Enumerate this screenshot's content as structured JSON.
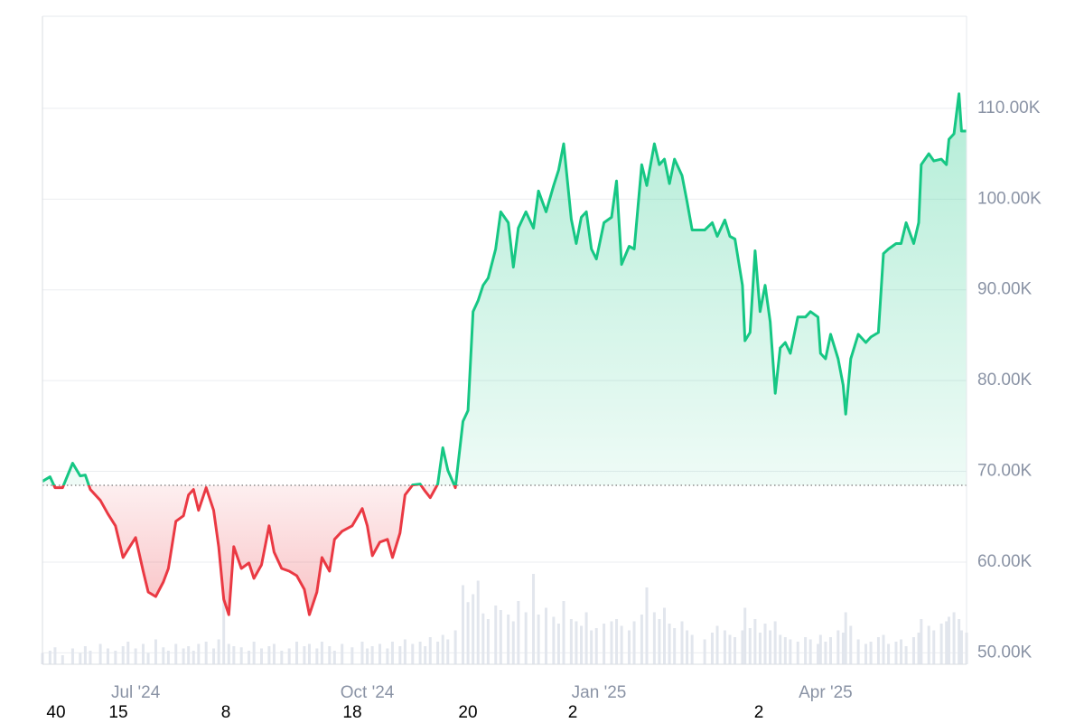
{
  "chart_data": {
    "type": "line",
    "x": [
      0,
      3,
      5,
      8,
      12,
      15,
      17,
      19,
      23,
      26,
      29,
      32,
      34,
      37,
      40,
      42,
      45,
      48,
      50,
      53,
      56,
      58,
      60,
      62,
      65,
      68,
      70,
      72,
      74,
      76,
      79,
      82,
      84,
      87,
      90,
      92,
      95,
      98,
      101,
      104,
      106,
      109,
      111,
      114,
      116,
      119,
      123,
      127,
      129,
      131,
      134,
      137,
      139,
      142,
      144,
      147,
      150,
      152,
      154,
      157,
      159,
      161,
      164,
      167,
      169,
      171,
      173,
      175,
      177,
      180,
      182,
      185,
      187,
      189,
      192,
      195,
      197,
      200,
      203,
      205,
      207,
      210,
      212,
      214,
      216,
      218,
      220,
      223,
      226,
      228,
      230,
      233,
      235,
      238,
      240,
      243,
      245,
      247,
      249,
      251,
      254,
      256,
      258,
      263,
      266,
      268,
      271,
      273,
      275,
      278,
      279,
      281,
      283,
      285,
      287,
      289,
      291,
      293,
      295,
      297,
      300,
      303,
      305,
      308,
      309,
      311,
      313,
      316,
      318,
      319,
      321,
      324,
      327,
      329,
      332,
      334,
      336,
      339,
      341,
      343,
      346,
      348,
      349,
      352,
      354,
      357,
      359,
      360,
      362,
      364,
      365,
      367
    ],
    "values": [
      68900,
      69400,
      68200,
      68200,
      70900,
      69500,
      69600,
      68000,
      66800,
      65300,
      64000,
      60500,
      61400,
      62700,
      59000,
      56700,
      56200,
      57800,
      59300,
      64500,
      65100,
      67400,
      68000,
      65700,
      68200,
      65700,
      61700,
      55900,
      54200,
      61700,
      59300,
      59900,
      58200,
      59700,
      64000,
      61100,
      59300,
      59000,
      58500,
      57000,
      54200,
      56700,
      60500,
      59000,
      62500,
      63400,
      64000,
      65900,
      64000,
      60700,
      62200,
      62500,
      60500,
      63200,
      67400,
      68500,
      68600,
      67800,
      67100,
      68600,
      72600,
      70100,
      68200,
      75500,
      76700,
      87600,
      88800,
      90500,
      91300,
      94500,
      98600,
      97400,
      92500,
      96800,
      98600,
      96800,
      100900,
      98600,
      101500,
      103200,
      106100,
      97800,
      95100,
      98000,
      98600,
      94500,
      93400,
      97400,
      98000,
      102000,
      92800,
      94800,
      94500,
      103800,
      101500,
      106100,
      103800,
      104400,
      101700,
      104400,
      102600,
      99700,
      96600,
      96600,
      97400,
      95900,
      97700,
      95900,
      95600,
      90500,
      84400,
      85300,
      94300,
      87600,
      90500,
      86500,
      78600,
      83600,
      84200,
      83000,
      87000,
      87000,
      87600,
      87000,
      83000,
      82400,
      85100,
      82400,
      79500,
      76300,
      82400,
      85100,
      84200,
      84800,
      85300,
      94000,
      94500,
      95100,
      95100,
      97400,
      95100,
      97400,
      103800,
      105000,
      104200,
      104400,
      103800,
      106600,
      107200,
      111600,
      107500,
      107500
    ],
    "volume": [
      10,
      12,
      15,
      8,
      14,
      10,
      16,
      12,
      18,
      14,
      12,
      16,
      20,
      14,
      18,
      10,
      22,
      15,
      12,
      18,
      14,
      16,
      12,
      18,
      20,
      14,
      22,
      60,
      18,
      16,
      15,
      12,
      20,
      14,
      16,
      18,
      12,
      14,
      20,
      16,
      18,
      14,
      20,
      16,
      12,
      18,
      15,
      20,
      14,
      16,
      18,
      14,
      20,
      16,
      22,
      18,
      20,
      16,
      24,
      20,
      26,
      22,
      30,
      70,
      55,
      62,
      74,
      45,
      40,
      52,
      48,
      44,
      38,
      56,
      46,
      80,
      44,
      50,
      42,
      36,
      56,
      40,
      38,
      34,
      46,
      30,
      32,
      36,
      38,
      40,
      34,
      30,
      38,
      44,
      68,
      46,
      40,
      50,
      36,
      32,
      38,
      30,
      26,
      22,
      28,
      34,
      30,
      26,
      24,
      30,
      50,
      32,
      40,
      28,
      36,
      30,
      38,
      26,
      24,
      22,
      20,
      24,
      22,
      18,
      26,
      20,
      24,
      30,
      28,
      46,
      34,
      22,
      18,
      20,
      24,
      26,
      18,
      20,
      22,
      16,
      24,
      28,
      40,
      34,
      30,
      36,
      38,
      42,
      46,
      40,
      30,
      28
    ],
    "volume_lim": [
      0,
      100
    ],
    "baseline": 68460,
    "up_color": "#16c784",
    "down_color": "#ea3943",
    "volume_color": "#e2e6ed",
    "xlim": [
      0,
      367
    ],
    "xticks": [
      {
        "value": 37,
        "label": "Jul '24"
      },
      {
        "value": 129,
        "label": "Oct '24"
      },
      {
        "value": 221,
        "label": "Jan '25"
      },
      {
        "value": 311,
        "label": "Apr '25"
      }
    ],
    "ylim": [
      48740,
      120150
    ],
    "yticks": [
      {
        "value": 50000,
        "label": "50.00K"
      },
      {
        "value": 60000,
        "label": "60.00K"
      },
      {
        "value": 70000,
        "label": "70.00K"
      },
      {
        "value": 80000,
        "label": "80.00K"
      },
      {
        "value": 90000,
        "label": "90.00K"
      },
      {
        "value": 100000,
        "label": "100.00K"
      },
      {
        "value": 110000,
        "label": "110.00K"
      }
    ],
    "grid": true,
    "footer_labels": [
      "40",
      "15",
      "8",
      "18",
      "20",
      "2",
      "2"
    ]
  }
}
